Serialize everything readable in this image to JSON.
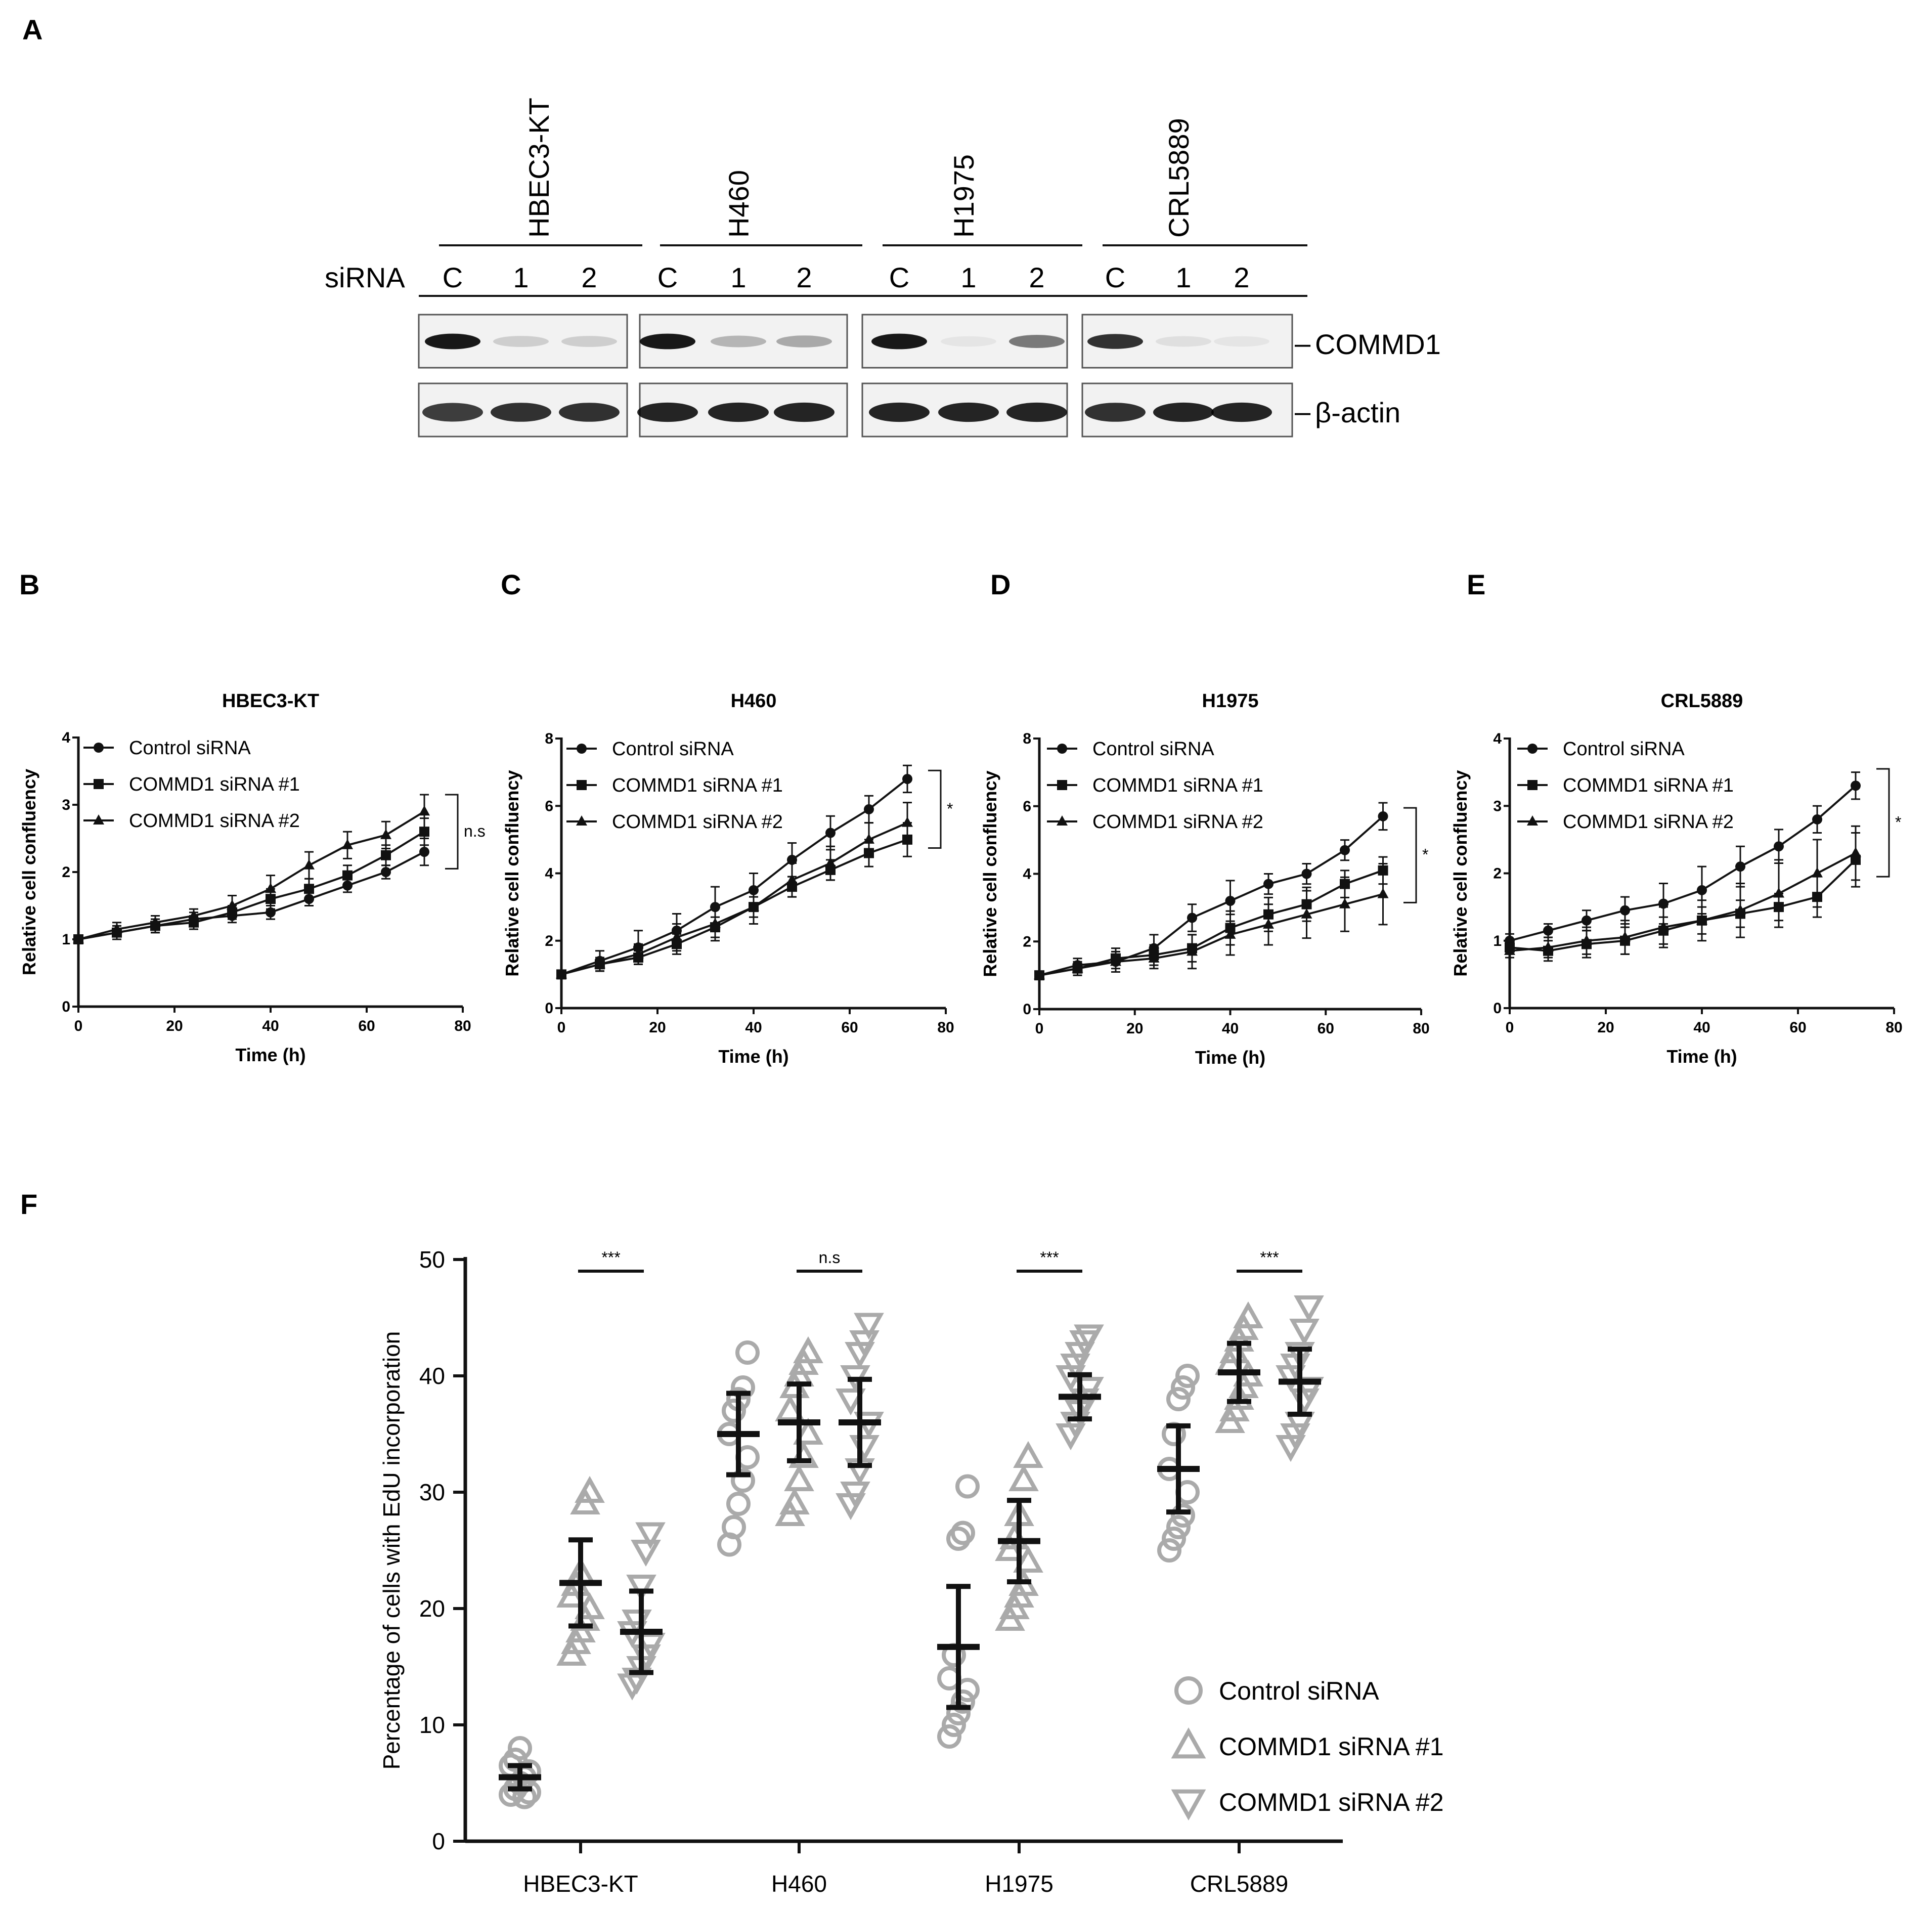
{
  "panel_labels": {
    "A": "A",
    "B": "B",
    "C": "C",
    "D": "D",
    "E": "E",
    "F": "F"
  },
  "western_blot": {
    "row_label": "siRNA",
    "cell_lines": [
      "HBEC3-KT",
      "H460",
      "H1975",
      "CRL5889"
    ],
    "lanes": [
      "C",
      "1",
      "2"
    ],
    "bands": [
      "COMMD1",
      "β-actin"
    ],
    "band_marks": [
      "–",
      "–"
    ],
    "commd1_intensity": [
      [
        0.9,
        0.15,
        0.15
      ],
      [
        0.9,
        0.25,
        0.3
      ],
      [
        0.9,
        0.05,
        0.5
      ],
      [
        0.8,
        0.08,
        0.05
      ]
    ],
    "actin_intensity": [
      [
        0.75,
        0.8,
        0.8
      ],
      [
        0.85,
        0.85,
        0.85
      ],
      [
        0.85,
        0.85,
        0.85
      ],
      [
        0.8,
        0.85,
        0.85
      ]
    ]
  },
  "chart_data": [
    {
      "type": "line",
      "panel": "B",
      "title": "HBEC3-KT",
      "xlabel": "Time (h)",
      "ylabel": "Relative cell confluency",
      "xlim": [
        0,
        80
      ],
      "ylim": [
        0,
        4
      ],
      "xticks": [
        0,
        20,
        40,
        60,
        80
      ],
      "yticks": [
        0,
        1,
        2,
        3,
        4
      ],
      "x": [
        0,
        8,
        16,
        24,
        32,
        40,
        48,
        56,
        64,
        72
      ],
      "series": [
        {
          "name": "Control siRNA",
          "marker": "circle",
          "values": [
            1.0,
            1.1,
            1.2,
            1.3,
            1.35,
            1.4,
            1.6,
            1.8,
            2.0,
            2.3
          ],
          "errors": [
            0.05,
            0.1,
            0.1,
            0.1,
            0.1,
            0.1,
            0.1,
            0.1,
            0.1,
            0.2
          ]
        },
        {
          "name": "COMMD1 siRNA #1",
          "marker": "square",
          "values": [
            1.0,
            1.1,
            1.2,
            1.25,
            1.4,
            1.6,
            1.75,
            1.95,
            2.25,
            2.6
          ],
          "errors": [
            0.05,
            0.1,
            0.1,
            0.1,
            0.1,
            0.15,
            0.15,
            0.15,
            0.15,
            0.2
          ]
        },
        {
          "name": "COMMD1 siRNA #2",
          "marker": "triangle",
          "values": [
            1.0,
            1.15,
            1.25,
            1.35,
            1.5,
            1.75,
            2.1,
            2.4,
            2.55,
            2.9
          ],
          "errors": [
            0.05,
            0.1,
            0.1,
            0.1,
            0.15,
            0.2,
            0.2,
            0.2,
            0.2,
            0.25
          ]
        }
      ],
      "significance": "n.s"
    },
    {
      "type": "line",
      "panel": "C",
      "title": "H460",
      "xlabel": "Time (h)",
      "ylabel": "Relative cell confluency",
      "xlim": [
        0,
        80
      ],
      "ylim": [
        0,
        8
      ],
      "xticks": [
        0,
        20,
        40,
        60,
        80
      ],
      "yticks": [
        0,
        2,
        4,
        6,
        8
      ],
      "x": [
        0,
        8,
        16,
        24,
        32,
        40,
        48,
        56,
        64,
        72
      ],
      "series": [
        {
          "name": "Control siRNA",
          "marker": "circle",
          "values": [
            1.0,
            1.4,
            1.8,
            2.3,
            3.0,
            3.5,
            4.4,
            5.2,
            5.9,
            6.8
          ],
          "errors": [
            0.1,
            0.3,
            0.5,
            0.5,
            0.6,
            0.5,
            0.5,
            0.5,
            0.4,
            0.4
          ]
        },
        {
          "name": "COMMD1 siRNA #1",
          "marker": "square",
          "values": [
            1.0,
            1.3,
            1.5,
            1.9,
            2.4,
            3.0,
            3.6,
            4.1,
            4.6,
            5.0
          ],
          "errors": [
            0.1,
            0.2,
            0.2,
            0.3,
            0.3,
            0.3,
            0.3,
            0.3,
            0.4,
            0.5
          ]
        },
        {
          "name": "COMMD1 siRNA #2",
          "marker": "triangle",
          "values": [
            1.0,
            1.3,
            1.6,
            2.1,
            2.5,
            3.0,
            3.8,
            4.3,
            5.0,
            5.5
          ],
          "errors": [
            0.1,
            0.2,
            0.3,
            0.4,
            0.5,
            0.5,
            0.5,
            0.5,
            0.5,
            0.6
          ]
        }
      ],
      "significance": "*"
    },
    {
      "type": "line",
      "panel": "D",
      "title": "H1975",
      "xlabel": "Time (h)",
      "ylabel": "Relative cell confluency",
      "xlim": [
        0,
        80
      ],
      "ylim": [
        0,
        8
      ],
      "xticks": [
        0,
        20,
        40,
        60,
        80
      ],
      "yticks": [
        0,
        2,
        4,
        6,
        8
      ],
      "x": [
        0,
        8,
        16,
        24,
        32,
        40,
        48,
        56,
        64,
        72
      ],
      "series": [
        {
          "name": "Control siRNA",
          "marker": "circle",
          "values": [
            1.0,
            1.3,
            1.4,
            1.8,
            2.7,
            3.2,
            3.7,
            4.0,
            4.7,
            5.7
          ],
          "errors": [
            0.1,
            0.2,
            0.3,
            0.4,
            0.4,
            0.6,
            0.3,
            0.3,
            0.3,
            0.4
          ]
        },
        {
          "name": "COMMD1 siRNA #1",
          "marker": "square",
          "values": [
            1.0,
            1.2,
            1.5,
            1.6,
            1.8,
            2.4,
            2.8,
            3.1,
            3.7,
            4.1
          ],
          "errors": [
            0.1,
            0.2,
            0.3,
            0.3,
            0.4,
            0.5,
            0.5,
            0.5,
            0.4,
            0.4
          ]
        },
        {
          "name": "COMMD1 siRNA #2",
          "marker": "triangle",
          "values": [
            1.0,
            1.2,
            1.4,
            1.5,
            1.7,
            2.2,
            2.5,
            2.8,
            3.1,
            3.4
          ],
          "errors": [
            0.1,
            0.2,
            0.3,
            0.3,
            0.5,
            0.6,
            0.6,
            0.7,
            0.8,
            0.9
          ]
        }
      ],
      "significance": "*"
    },
    {
      "type": "line",
      "panel": "E",
      "title": "CRL5889",
      "xlabel": "Time (h)",
      "ylabel": "Relative cell confluency",
      "xlim": [
        0,
        80
      ],
      "ylim": [
        0,
        4
      ],
      "xticks": [
        0,
        20,
        40,
        60,
        80
      ],
      "yticks": [
        0,
        1,
        2,
        3,
        4
      ],
      "x": [
        0,
        8,
        16,
        24,
        32,
        40,
        48,
        56,
        64,
        72
      ],
      "series": [
        {
          "name": "Control siRNA",
          "marker": "circle",
          "values": [
            1.0,
            1.15,
            1.3,
            1.45,
            1.55,
            1.75,
            2.1,
            2.4,
            2.8,
            3.3
          ],
          "errors": [
            0.1,
            0.1,
            0.15,
            0.2,
            0.3,
            0.35,
            0.3,
            0.25,
            0.2,
            0.2
          ]
        },
        {
          "name": "COMMD1 siRNA #1",
          "marker": "square",
          "values": [
            0.9,
            0.85,
            0.95,
            1.0,
            1.15,
            1.3,
            1.4,
            1.5,
            1.65,
            2.2
          ],
          "errors": [
            0.1,
            0.15,
            0.2,
            0.2,
            0.2,
            0.2,
            0.2,
            0.2,
            0.3,
            0.4
          ]
        },
        {
          "name": "COMMD1 siRNA #2",
          "marker": "triangle",
          "values": [
            0.85,
            0.9,
            1.0,
            1.05,
            1.2,
            1.3,
            1.45,
            1.7,
            2.0,
            2.3
          ],
          "errors": [
            0.1,
            0.15,
            0.2,
            0.25,
            0.3,
            0.3,
            0.4,
            0.5,
            0.5,
            0.4
          ]
        }
      ],
      "significance": "*"
    },
    {
      "type": "scatter",
      "panel": "F",
      "ylabel": "Percentage of cells with EdU incorporation",
      "ylim": [
        0,
        50
      ],
      "yticks": [
        0,
        10,
        20,
        30,
        40,
        50
      ],
      "categories": [
        "HBEC3-KT",
        "H460",
        "H1975",
        "CRL5889"
      ],
      "series": [
        {
          "name": "Control siRNA",
          "marker": "open-circle",
          "means": [
            5.5,
            35.0,
            16.7,
            32.0
          ],
          "errors": [
            1.0,
            3.5,
            5.2,
            3.7
          ],
          "points": [
            [
              4,
              4.5,
              5,
              5.5,
              6,
              6.5,
              7,
              8,
              3.8,
              4.2
            ],
            [
              25.5,
              27,
              29,
              31,
              33,
              35,
              37,
              38,
              39,
              42
            ],
            [
              9,
              10,
              11,
              12,
              13,
              14,
              16,
              26,
              26.5,
              30.5
            ],
            [
              25,
              26,
              27,
              28,
              30,
              32,
              35,
              38,
              39,
              40
            ]
          ]
        },
        {
          "name": "COMMD1 siRNA #1",
          "marker": "open-triangle-up",
          "means": [
            22.2,
            36.0,
            25.8,
            40.3
          ],
          "errors": [
            3.7,
            3.3,
            3.5,
            2.5
          ],
          "points": [
            [
              16,
              17,
              18,
              19,
              20,
              21,
              22,
              23,
              29,
              30
            ],
            [
              28,
              29,
              31,
              33,
              35,
              37,
              39,
              40,
              41,
              42
            ],
            [
              19,
              20,
              21,
              22,
              24,
              25,
              26,
              28,
              31,
              33
            ],
            [
              36,
              37,
              38,
              39,
              40,
              41,
              42,
              43,
              44,
              45
            ]
          ]
        },
        {
          "name": "COMMD1 siRNA #2",
          "marker": "open-triangle-down",
          "means": [
            18.0,
            36.0,
            38.2,
            39.5
          ],
          "errors": [
            3.5,
            3.7,
            1.9,
            2.8
          ],
          "points": [
            [
              13.5,
              14,
              15,
              16,
              17,
              18,
              19,
              22,
              25,
              26.5
            ],
            [
              29,
              30,
              32,
              34,
              36,
              38,
              40,
              42,
              43,
              44.5
            ],
            [
              35,
              36,
              37,
              38,
              39,
              40,
              41,
              42,
              43,
              43.5
            ],
            [
              34,
              35,
              36,
              38,
              39,
              40,
              41,
              42,
              44,
              46
            ]
          ]
        }
      ],
      "significance": [
        "***",
        "n.s",
        "***",
        "***"
      ]
    }
  ]
}
